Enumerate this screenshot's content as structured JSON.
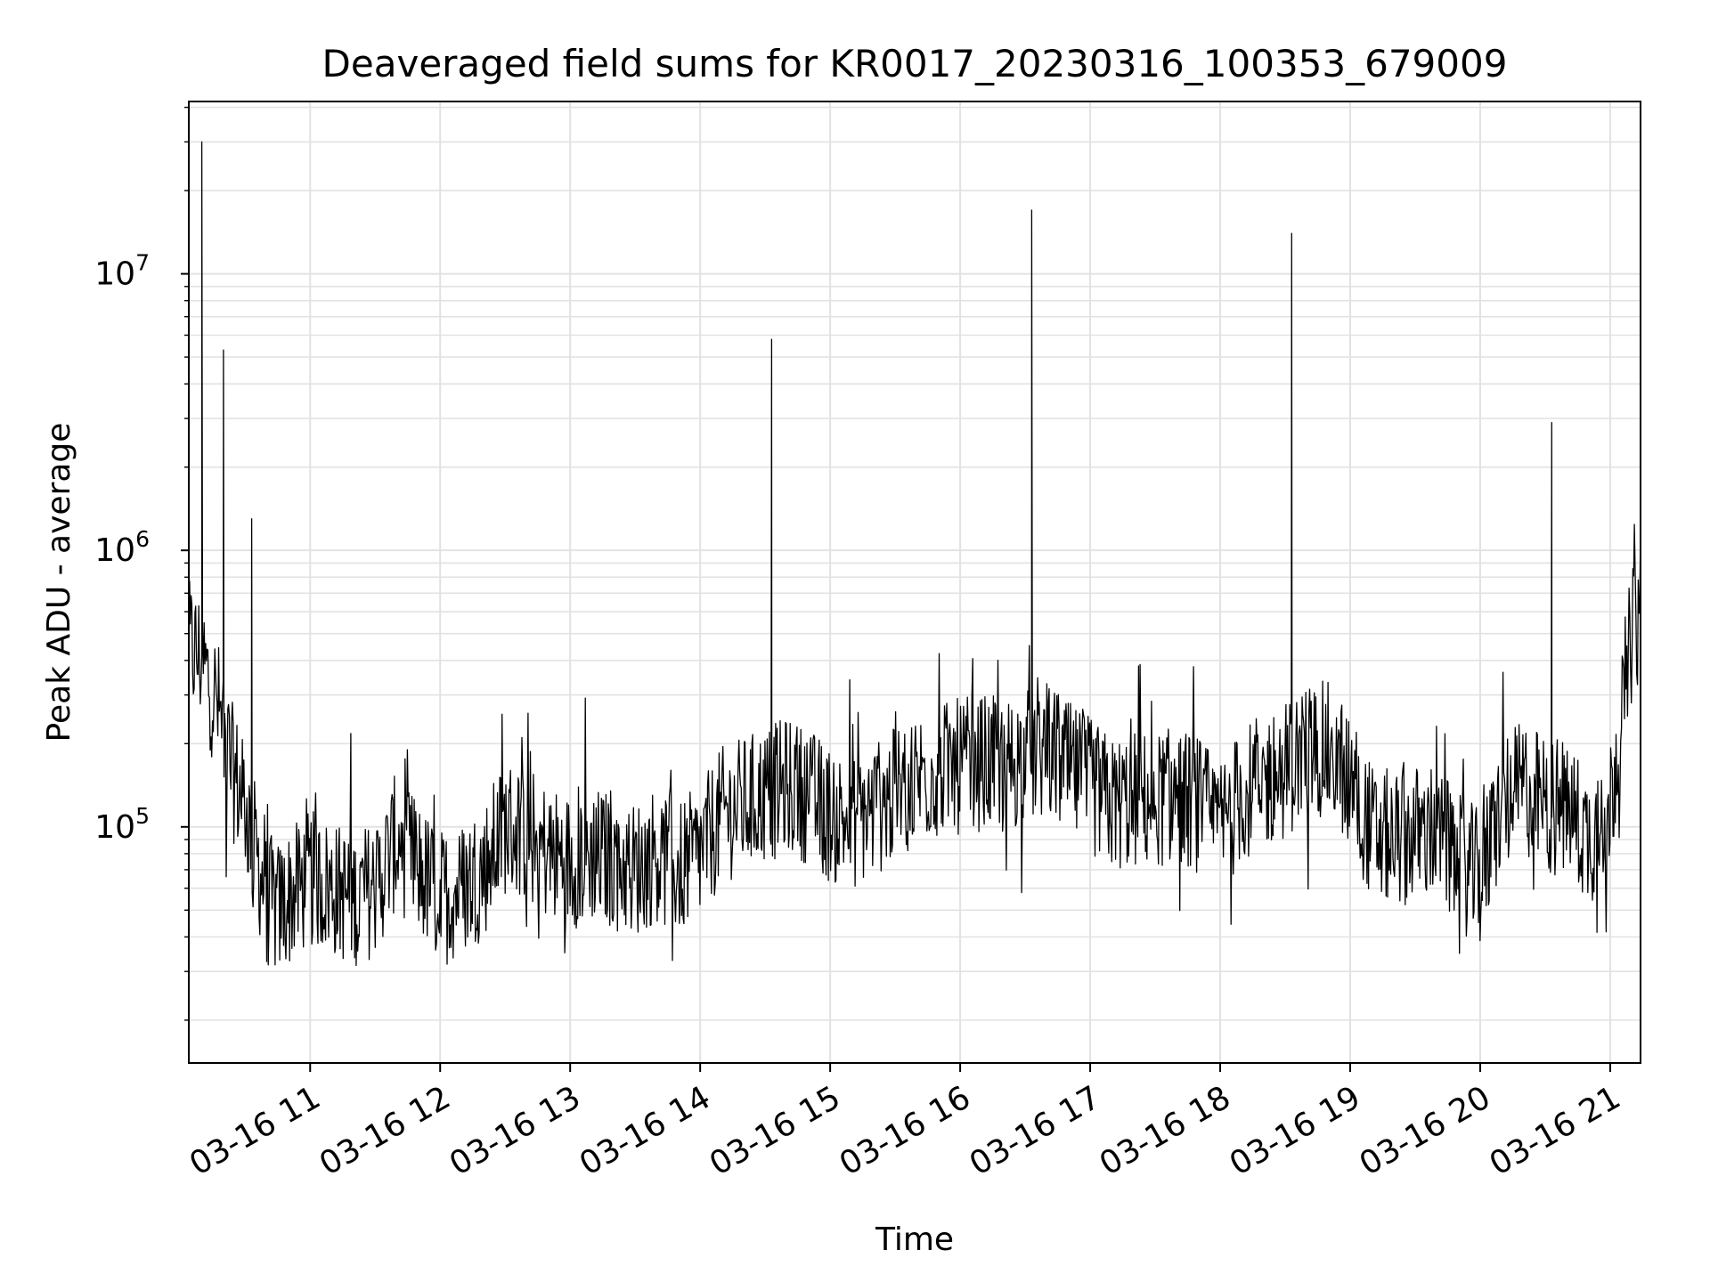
{
  "chart_data": {
    "type": "line",
    "title": "Deaveraged field sums for KR0017_20230316_100353_679009",
    "xlabel": "Time",
    "ylabel": "Peak ADU - average",
    "y_scale": "log",
    "xlim": [
      "2023-03-16 10:04",
      "2023-03-16 21:14"
    ],
    "ylim": [
      14000,
      42000000
    ],
    "grid": true,
    "line_color": "#000000",
    "x_ticks": [
      "03-16 11",
      "03-16 12",
      "03-16 13",
      "03-16 14",
      "03-16 15",
      "03-16 16",
      "03-16 17",
      "03-16 18",
      "03-16 19",
      "03-16 20",
      "03-16 21"
    ],
    "y_ticks": [
      {
        "base": "10",
        "exp": "5",
        "value": 100000
      },
      {
        "base": "10",
        "exp": "6",
        "value": 1000000
      },
      {
        "base": "10",
        "exp": "7",
        "value": 10000000
      }
    ],
    "series": [
      {
        "x": [
          "2023-03-16 10:04",
          "2023-03-16 10:10",
          "2023-03-16 10:17",
          "2023-03-16 10:24",
          "2023-03-16 10:30",
          "2023-03-16 10:35",
          "2023-03-16 10:40",
          "2023-03-16 10:45",
          "2023-03-16 10:50",
          "2023-03-16 10:55",
          "2023-03-16 11:00",
          "2023-03-16 11:10",
          "2023-03-16 11:20",
          "2023-03-16 11:30",
          "2023-03-16 11:40",
          "2023-03-16 11:50",
          "2023-03-16 12:00",
          "2023-03-16 12:10",
          "2023-03-16 12:20",
          "2023-03-16 12:30",
          "2023-03-16 12:40",
          "2023-03-16 12:50",
          "2023-03-16 13:00",
          "2023-03-16 13:10",
          "2023-03-16 13:20",
          "2023-03-16 13:30",
          "2023-03-16 13:40",
          "2023-03-16 13:50",
          "2023-03-16 14:00",
          "2023-03-16 14:10",
          "2023-03-16 14:20",
          "2023-03-16 14:30",
          "2023-03-16 14:40",
          "2023-03-16 14:50",
          "2023-03-16 15:00",
          "2023-03-16 15:10",
          "2023-03-16 15:20",
          "2023-03-16 15:30",
          "2023-03-16 15:40",
          "2023-03-16 15:50",
          "2023-03-16 16:00",
          "2023-03-16 16:10",
          "2023-03-16 16:20",
          "2023-03-16 16:30",
          "2023-03-16 16:40",
          "2023-03-16 16:50",
          "2023-03-16 17:00",
          "2023-03-16 17:10",
          "2023-03-16 17:20",
          "2023-03-16 17:30",
          "2023-03-16 17:40",
          "2023-03-16 17:50",
          "2023-03-16 18:00",
          "2023-03-16 18:10",
          "2023-03-16 18:20",
          "2023-03-16 18:30",
          "2023-03-16 18:40",
          "2023-03-16 18:50",
          "2023-03-16 19:00",
          "2023-03-16 19:10",
          "2023-03-16 19:20",
          "2023-03-16 19:30",
          "2023-03-16 19:40",
          "2023-03-16 19:50",
          "2023-03-16 20:00",
          "2023-03-16 20:10",
          "2023-03-16 20:20",
          "2023-03-16 20:30",
          "2023-03-16 20:40",
          "2023-03-16 20:50",
          "2023-03-16 21:00",
          "2023-03-16 21:05",
          "2023-03-16 21:10",
          "2023-03-16 21:14"
        ],
        "values": [
          450000,
          400000,
          280000,
          160000,
          120000,
          80000,
          55000,
          50000,
          55000,
          60000,
          65000,
          60000,
          55000,
          60000,
          90000,
          70000,
          55000,
          60000,
          70000,
          100000,
          95000,
          80000,
          75000,
          80000,
          75000,
          70000,
          80000,
          70000,
          80000,
          110000,
          120000,
          130000,
          140000,
          130000,
          110000,
          105000,
          115000,
          130000,
          150000,
          160000,
          165000,
          170000,
          165000,
          180000,
          190000,
          160000,
          140000,
          120000,
          125000,
          125000,
          130000,
          120000,
          100000,
          130000,
          145000,
          160000,
          190000,
          190000,
          150000,
          95000,
          90000,
          95000,
          95000,
          75000,
          65000,
          120000,
          140000,
          120000,
          120000,
          90000,
          120000,
          250000,
          500000,
          700000
        ]
      }
    ],
    "spikes": [
      {
        "x": "2023-03-16 10:10",
        "y": 30000000
      },
      {
        "x": "2023-03-16 10:20",
        "y": 5300000
      },
      {
        "x": "2023-03-16 10:33",
        "y": 1300000
      },
      {
        "x": "2023-03-16 14:33",
        "y": 5800000
      },
      {
        "x": "2023-03-16 16:33",
        "y": 17000000
      },
      {
        "x": "2023-03-16 18:33",
        "y": 14000000
      },
      {
        "x": "2023-03-16 20:33",
        "y": 2900000
      }
    ]
  }
}
